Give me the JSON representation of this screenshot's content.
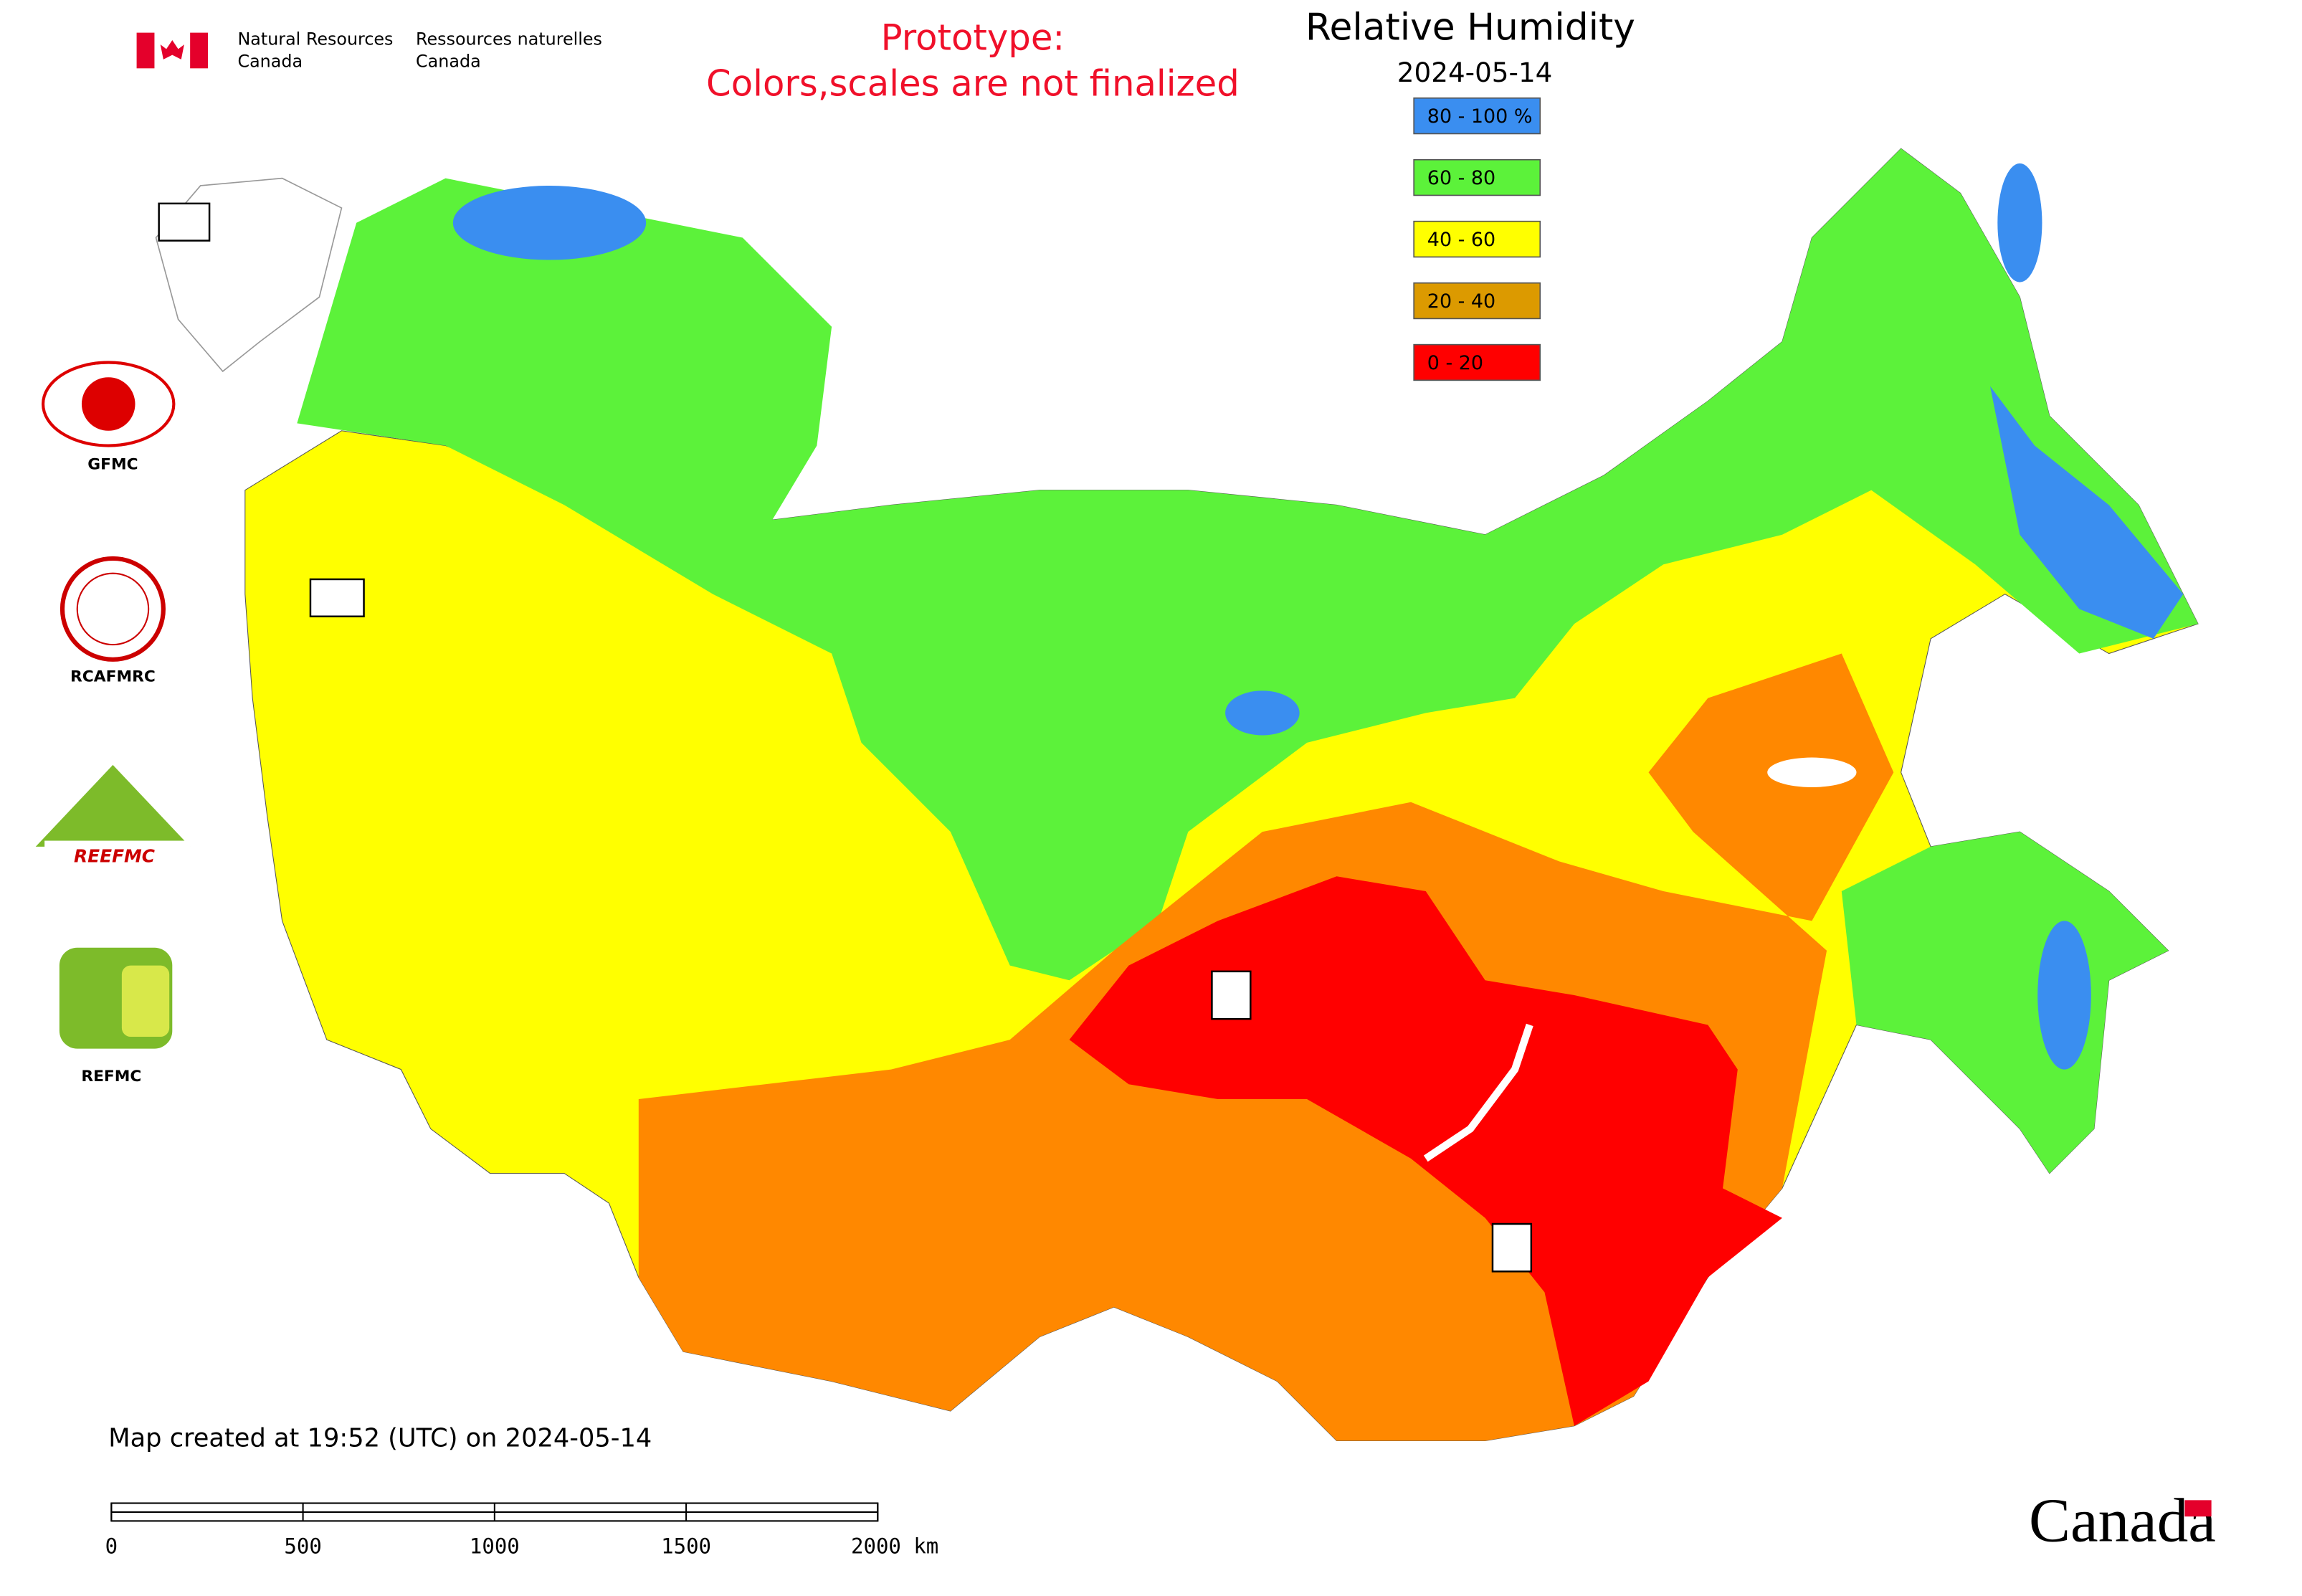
{
  "header": {
    "department_en": [
      "Natural Resources",
      "Canada"
    ],
    "department_fr": [
      "Ressources naturelles",
      "Canada"
    ]
  },
  "prototype_notice": [
    "Prototype:",
    "Colors,scales are not finalized"
  ],
  "title": "Relative Humidity",
  "date": "2024-05-14",
  "legend": [
    {
      "label": "80 - 100 %",
      "color": "#3a8ef0"
    },
    {
      "label": "60 - 80",
      "color": "#5cf23a"
    },
    {
      "label": "40 - 60",
      "color": "#ffff00"
    },
    {
      "label": "20 - 40",
      "color": "#dc9a00"
    },
    {
      "label": "0 - 20",
      "color": "#ff0000"
    }
  ],
  "partners": [
    "GFMC",
    "RCAFMRC",
    "REEFMC",
    "REFMC"
  ],
  "footer": "Map created at 19:52 (UTC) on 2024-05-14",
  "scale_bar": [
    "0",
    "500",
    "1000",
    "1500",
    "2000 km"
  ],
  "wordmark": "Canada"
}
